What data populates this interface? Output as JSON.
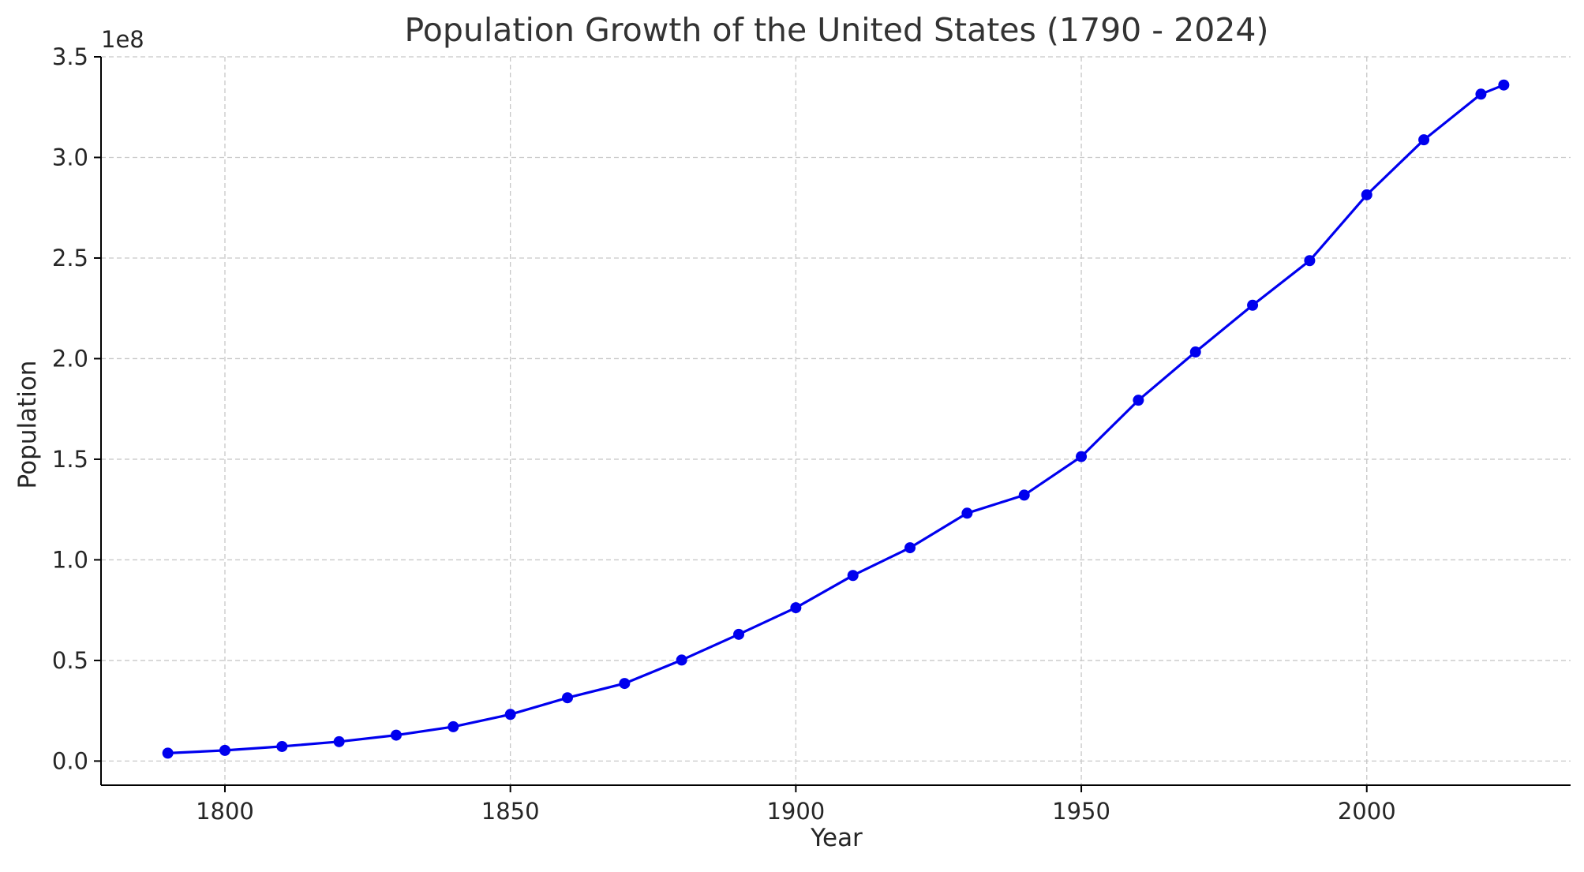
{
  "chart_data": {
    "type": "line",
    "title": "Population Growth of the United States (1790 - 2024)",
    "xlabel": "Year",
    "ylabel": "Population",
    "y_offset_label": "1e8",
    "xlim": [
      1778.3,
      2035.7
    ],
    "ylim": [
      -12000000,
      350000000
    ],
    "x_ticks": [
      1800,
      1850,
      1900,
      1950,
      2000
    ],
    "x_tick_labels": [
      "1800",
      "1850",
      "1900",
      "1950",
      "2000"
    ],
    "y_ticks": [
      0,
      50000000,
      100000000,
      150000000,
      200000000,
      250000000,
      300000000,
      350000000
    ],
    "y_tick_labels": [
      "0.0",
      "0.5",
      "1.0",
      "1.5",
      "2.0",
      "2.5",
      "3.0",
      "3.5"
    ],
    "grid": true,
    "color": "#0000ee",
    "series": [
      {
        "x": [
          1790,
          1800,
          1810,
          1820,
          1830,
          1840,
          1850,
          1860,
          1870,
          1880,
          1890,
          1900,
          1910,
          1920,
          1930,
          1940,
          1950,
          1960,
          1970,
          1980,
          1990,
          2000,
          2010,
          2020,
          2024
        ],
        "y": [
          3929214,
          5308483,
          7239881,
          9638453,
          12866020,
          17069453,
          23191876,
          31443321,
          38558371,
          50189209,
          62979766,
          76212168,
          92228496,
          106021537,
          123202624,
          132164569,
          151325798,
          179323175,
          203302031,
          226545805,
          248709873,
          281421906,
          308745538,
          331449281,
          336000000
        ]
      }
    ]
  }
}
